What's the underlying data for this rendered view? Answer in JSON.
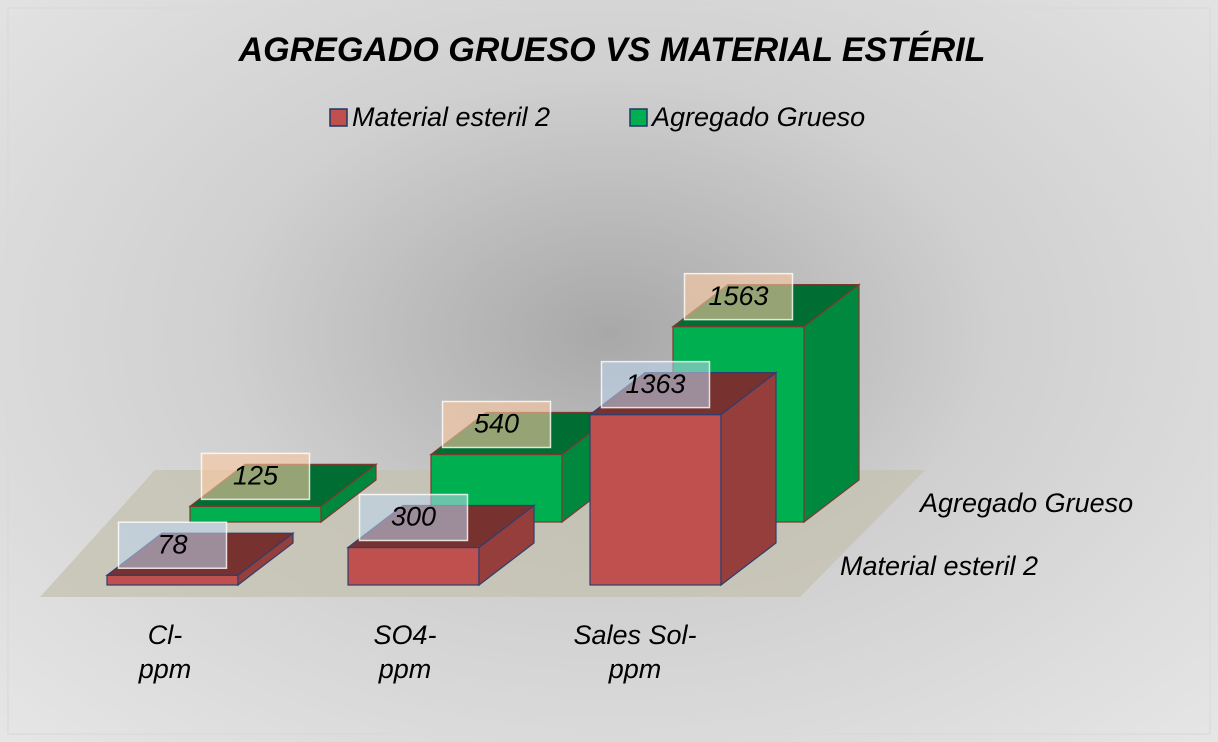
{
  "chart_data": {
    "type": "bar3d",
    "title": "AGREGADO GRUESO VS  MATERIAL ESTÉRIL",
    "categories": [
      "Cl-ppm",
      "SO4-ppm",
      "Sales Sol-ppm"
    ],
    "series": [
      {
        "name": "Material esteril 2",
        "color": "#c0504d",
        "values": [
          78,
          300,
          1363
        ]
      },
      {
        "name": "Agregado Grueso",
        "color": "#00b050",
        "values": [
          125,
          540,
          1563
        ]
      }
    ],
    "legend": "top"
  }
}
